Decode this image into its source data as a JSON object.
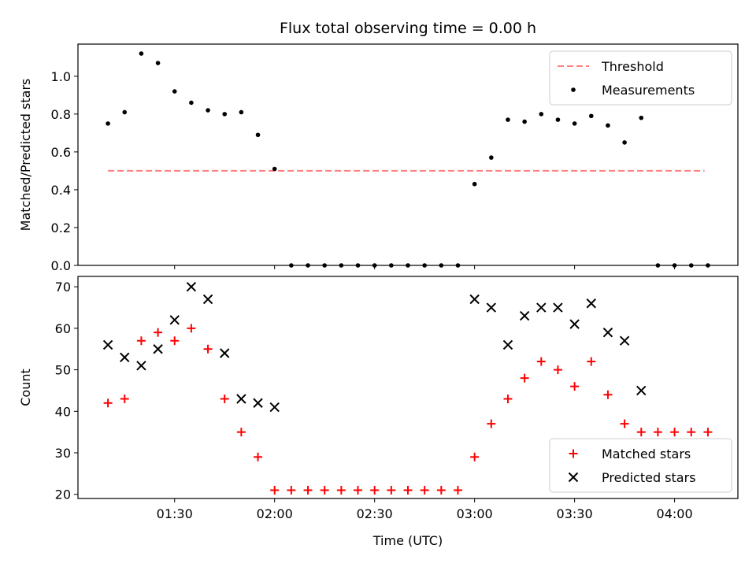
{
  "figure": {
    "title": "Flux total observing time = 0.00 h",
    "xlabel": "Time (UTC)"
  },
  "chart_data": [
    {
      "type": "scatter",
      "ylabel": "Matched/Predicted stars",
      "ylim": [
        0,
        1.17
      ],
      "yticks": [
        "0.0",
        "0.2",
        "0.4",
        "0.6",
        "0.8",
        "1.0"
      ],
      "xlim": [
        "01:01",
        "04:19"
      ],
      "xticks": [
        "01:30",
        "02:00",
        "02:30",
        "03:00",
        "03:30",
        "04:00"
      ],
      "tick_labels_visible": false,
      "legend": {
        "position": "upper right",
        "entries": [
          "Threshold",
          "Measurements"
        ]
      },
      "threshold": {
        "name": "Threshold",
        "y": 0.5,
        "x_start": "01:10",
        "x_end": "04:09",
        "color": "#ff7f7f",
        "style": "dashed"
      },
      "series": [
        {
          "name": "Measurements",
          "marker": "dot",
          "color": "#000000",
          "points": [
            [
              "01:10",
              0.75
            ],
            [
              "01:15",
              0.81
            ],
            [
              "01:20",
              1.12
            ],
            [
              "01:25",
              1.07
            ],
            [
              "01:30",
              0.92
            ],
            [
              "01:35",
              0.86
            ],
            [
              "01:40",
              0.82
            ],
            [
              "01:45",
              0.8
            ],
            [
              "01:50",
              0.81
            ],
            [
              "01:55",
              0.69
            ],
            [
              "02:00",
              0.51
            ],
            [
              "02:05",
              0.0
            ],
            [
              "02:10",
              0.0
            ],
            [
              "02:15",
              0.0
            ],
            [
              "02:20",
              0.0
            ],
            [
              "02:25",
              0.0
            ],
            [
              "02:30",
              0.0
            ],
            [
              "02:35",
              0.0
            ],
            [
              "02:40",
              0.0
            ],
            [
              "02:45",
              0.0
            ],
            [
              "02:50",
              0.0
            ],
            [
              "02:55",
              0.0
            ],
            [
              "03:00",
              0.43
            ],
            [
              "03:05",
              0.57
            ],
            [
              "03:10",
              0.77
            ],
            [
              "03:15",
              0.76
            ],
            [
              "03:20",
              0.8
            ],
            [
              "03:25",
              0.77
            ],
            [
              "03:30",
              0.75
            ],
            [
              "03:35",
              0.79
            ],
            [
              "03:40",
              0.74
            ],
            [
              "03:45",
              0.65
            ],
            [
              "03:50",
              0.78
            ],
            [
              "03:55",
              0.0
            ],
            [
              "04:00",
              0.0
            ],
            [
              "04:05",
              0.0
            ],
            [
              "04:10",
              0.0
            ]
          ]
        }
      ]
    },
    {
      "type": "scatter",
      "ylabel": "Count",
      "ylim": [
        19,
        72.5
      ],
      "yticks": [
        "20",
        "30",
        "40",
        "50",
        "60",
        "70"
      ],
      "xlim": [
        "01:01",
        "04:19"
      ],
      "xticks": [
        "01:30",
        "02:00",
        "02:30",
        "03:00",
        "03:30",
        "04:00"
      ],
      "legend": {
        "position": "lower right",
        "entries": [
          "Matched stars",
          "Predicted stars"
        ]
      },
      "series": [
        {
          "name": "Matched stars",
          "marker": "plus",
          "color": "#ff0000",
          "points": [
            [
              "01:10",
              42
            ],
            [
              "01:15",
              43
            ],
            [
              "01:20",
              57
            ],
            [
              "01:25",
              59
            ],
            [
              "01:30",
              57
            ],
            [
              "01:35",
              60
            ],
            [
              "01:40",
              55
            ],
            [
              "01:45",
              43
            ],
            [
              "01:50",
              35
            ],
            [
              "01:55",
              29
            ],
            [
              "02:00",
              21
            ],
            [
              "02:05",
              21
            ],
            [
              "02:10",
              21
            ],
            [
              "02:15",
              21
            ],
            [
              "02:20",
              21
            ],
            [
              "02:25",
              21
            ],
            [
              "02:30",
              21
            ],
            [
              "02:35",
              21
            ],
            [
              "02:40",
              21
            ],
            [
              "02:45",
              21
            ],
            [
              "02:50",
              21
            ],
            [
              "02:55",
              21
            ],
            [
              "03:00",
              29
            ],
            [
              "03:05",
              37
            ],
            [
              "03:10",
              43
            ],
            [
              "03:15",
              48
            ],
            [
              "03:20",
              52
            ],
            [
              "03:25",
              50
            ],
            [
              "03:30",
              46
            ],
            [
              "03:35",
              52
            ],
            [
              "03:40",
              44
            ],
            [
              "03:45",
              37
            ],
            [
              "03:50",
              35
            ],
            [
              "03:55",
              35
            ],
            [
              "04:00",
              35
            ],
            [
              "04:05",
              35
            ],
            [
              "04:10",
              35
            ]
          ]
        },
        {
          "name": "Predicted stars",
          "marker": "x",
          "color": "#000000",
          "points": [
            [
              "01:10",
              56
            ],
            [
              "01:15",
              53
            ],
            [
              "01:20",
              51
            ],
            [
              "01:25",
              55
            ],
            [
              "01:30",
              62
            ],
            [
              "01:35",
              70
            ],
            [
              "01:40",
              67
            ],
            [
              "01:45",
              54
            ],
            [
              "01:50",
              43
            ],
            [
              "01:55",
              42
            ],
            [
              "02:00",
              41
            ],
            [
              "03:00",
              67
            ],
            [
              "03:05",
              65
            ],
            [
              "03:10",
              56
            ],
            [
              "03:15",
              63
            ],
            [
              "03:20",
              65
            ],
            [
              "03:25",
              65
            ],
            [
              "03:30",
              61
            ],
            [
              "03:35",
              66
            ],
            [
              "03:40",
              59
            ],
            [
              "03:45",
              57
            ],
            [
              "03:50",
              45
            ]
          ]
        }
      ]
    }
  ]
}
